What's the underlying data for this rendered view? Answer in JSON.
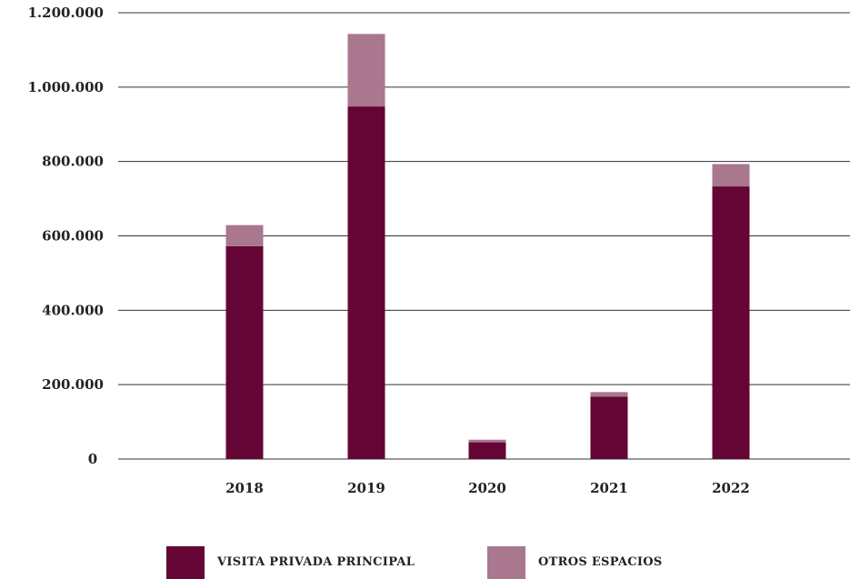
{
  "chart_data": {
    "type": "bar",
    "stacked": true,
    "categories": [
      "2018",
      "2019",
      "2020",
      "2021",
      "2022"
    ],
    "series": [
      {
        "name": "VISITA PRIVADA PRINCIPAL",
        "color": "#640535",
        "values": [
          572000,
          948000,
          45000,
          168000,
          733000
        ]
      },
      {
        "name": "OTROS ESPACIOS",
        "color": "#a9778e",
        "values": [
          57000,
          195000,
          7000,
          12000,
          60000
        ]
      }
    ],
    "y_ticks": [
      {
        "value": 0,
        "label": "0"
      },
      {
        "value": 200000,
        "label": "200.000"
      },
      {
        "value": 400000,
        "label": "400.000"
      },
      {
        "value": 600000,
        "label": "600.000"
      },
      {
        "value": 800000,
        "label": "800.000"
      },
      {
        "value": 1000000,
        "label": "1.000.000"
      },
      {
        "value": 1200000,
        "label": "1.200.000"
      }
    ],
    "ylim": [
      0,
      1200000
    ],
    "title": "",
    "xlabel": "",
    "ylabel": "",
    "grid": true,
    "legend_position": "bottom"
  }
}
